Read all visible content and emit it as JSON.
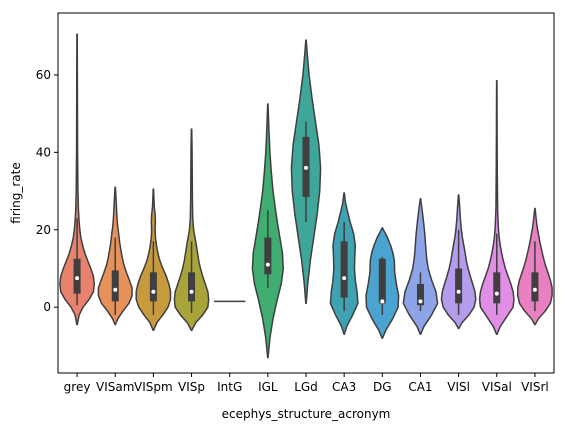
{
  "chart_data": {
    "type": "violin",
    "xlabel": "ecephys_structure_acronym",
    "ylabel": "firing_rate",
    "ylim": [
      -17,
      76
    ],
    "yticks": [
      0,
      20,
      40,
      60
    ],
    "categories": [
      "grey",
      "VISam",
      "VISpm",
      "VISp",
      "IntG",
      "IGL",
      "LGd",
      "CA3",
      "DG",
      "CA1",
      "VISl",
      "VISal",
      "VISrl"
    ],
    "colors": [
      "#e8816e",
      "#e8925b",
      "#c89a3e",
      "#a9a43a",
      "#8aa638",
      "#3fae70",
      "#3ea79a",
      "#3ea2b2",
      "#4ba3cf",
      "#8ea4e8",
      "#b59cec",
      "#e18fe6",
      "#e880c1"
    ],
    "violins": [
      {
        "name": "grey",
        "min": -4.5,
        "max": 70.5,
        "q1": 3.5,
        "median": 7.5,
        "q3": 12.5,
        "whisker_low": 0.5,
        "whisker_high": 23,
        "profile": [
          [
            -4.5,
            0.01
          ],
          [
            -2,
            0.12
          ],
          [
            0,
            0.35
          ],
          [
            2,
            0.7
          ],
          [
            4,
            0.95
          ],
          [
            6,
            1.0
          ],
          [
            8,
            0.95
          ],
          [
            10,
            0.8
          ],
          [
            12,
            0.62
          ],
          [
            14,
            0.45
          ],
          [
            16,
            0.32
          ],
          [
            18,
            0.22
          ],
          [
            20,
            0.16
          ],
          [
            22,
            0.12
          ],
          [
            25,
            0.08
          ],
          [
            30,
            0.05
          ],
          [
            40,
            0.03
          ],
          [
            55,
            0.02
          ],
          [
            70.5,
            0.01
          ]
        ]
      },
      {
        "name": "VISam",
        "min": -4.5,
        "max": 31,
        "q1": 1.5,
        "median": 4.5,
        "q3": 9.5,
        "whisker_low": -2,
        "whisker_high": 18,
        "profile": [
          [
            -4.5,
            0.01
          ],
          [
            -3,
            0.15
          ],
          [
            -1,
            0.45
          ],
          [
            1,
            0.8
          ],
          [
            3,
            0.98
          ],
          [
            5,
            0.98
          ],
          [
            7,
            0.82
          ],
          [
            9,
            0.65
          ],
          [
            11,
            0.5
          ],
          [
            13,
            0.4
          ],
          [
            15,
            0.32
          ],
          [
            17,
            0.25
          ],
          [
            19,
            0.2
          ],
          [
            21,
            0.14
          ],
          [
            24,
            0.09
          ],
          [
            27,
            0.06
          ],
          [
            31,
            0.01
          ]
        ]
      },
      {
        "name": "VISpm",
        "min": -6,
        "max": 30.5,
        "q1": 1.5,
        "median": 4,
        "q3": 9,
        "whisker_low": -2,
        "whisker_high": 17,
        "profile": [
          [
            -6,
            0.01
          ],
          [
            -4,
            0.2
          ],
          [
            -2,
            0.55
          ],
          [
            0,
            0.85
          ],
          [
            2,
            1.0
          ],
          [
            4,
            1.0
          ],
          [
            6,
            0.9
          ],
          [
            8,
            0.75
          ],
          [
            10,
            0.55
          ],
          [
            12,
            0.38
          ],
          [
            14,
            0.26
          ],
          [
            16,
            0.18
          ],
          [
            18,
            0.12
          ],
          [
            20,
            0.1
          ],
          [
            22,
            0.12
          ],
          [
            24,
            0.1
          ],
          [
            26,
            0.05
          ],
          [
            30.5,
            0.01
          ]
        ]
      },
      {
        "name": "VISp",
        "min": -6,
        "max": 46,
        "q1": 1.5,
        "median": 4,
        "q3": 9,
        "whisker_low": -1.5,
        "whisker_high": 17,
        "profile": [
          [
            -6,
            0.01
          ],
          [
            -4,
            0.25
          ],
          [
            -2,
            0.65
          ],
          [
            0,
            0.95
          ],
          [
            2,
            1.0
          ],
          [
            4,
            0.95
          ],
          [
            6,
            0.8
          ],
          [
            8,
            0.65
          ],
          [
            10,
            0.52
          ],
          [
            12,
            0.42
          ],
          [
            14,
            0.35
          ],
          [
            16,
            0.28
          ],
          [
            18,
            0.2
          ],
          [
            20,
            0.12
          ],
          [
            23,
            0.07
          ],
          [
            28,
            0.05
          ],
          [
            35,
            0.04
          ],
          [
            41,
            0.03
          ],
          [
            46,
            0.01
          ]
        ]
      },
      {
        "name": "IntG",
        "flat": true,
        "value": 1.5
      },
      {
        "name": "IGL",
        "min": -13,
        "max": 52.5,
        "q1": 8.5,
        "median": 11,
        "q3": 18,
        "whisker_low": 5,
        "whisker_high": 25,
        "profile": [
          [
            -13,
            0.01
          ],
          [
            -8,
            0.12
          ],
          [
            -3,
            0.3
          ],
          [
            2,
            0.55
          ],
          [
            6,
            0.78
          ],
          [
            10,
            0.9
          ],
          [
            14,
            0.85
          ],
          [
            18,
            0.7
          ],
          [
            22,
            0.55
          ],
          [
            26,
            0.42
          ],
          [
            30,
            0.3
          ],
          [
            35,
            0.2
          ],
          [
            40,
            0.12
          ],
          [
            45,
            0.07
          ],
          [
            52.5,
            0.01
          ]
        ]
      },
      {
        "name": "LGd",
        "min": 1,
        "max": 69,
        "q1": 28.5,
        "median": 36,
        "q3": 44,
        "whisker_low": 22,
        "whisker_high": 48,
        "profile": [
          [
            1,
            0.01
          ],
          [
            6,
            0.1
          ],
          [
            12,
            0.25
          ],
          [
            18,
            0.45
          ],
          [
            24,
            0.65
          ],
          [
            30,
            0.8
          ],
          [
            36,
            0.85
          ],
          [
            42,
            0.75
          ],
          [
            48,
            0.55
          ],
          [
            54,
            0.35
          ],
          [
            60,
            0.18
          ],
          [
            65,
            0.08
          ],
          [
            69,
            0.01
          ]
        ]
      },
      {
        "name": "CA3",
        "min": -7,
        "max": 29.5,
        "q1": 2.5,
        "median": 7.5,
        "q3": 17,
        "whisker_low": -1,
        "whisker_high": 22,
        "profile": [
          [
            -7,
            0.01
          ],
          [
            -5,
            0.15
          ],
          [
            -2,
            0.5
          ],
          [
            1,
            0.8
          ],
          [
            4,
            0.75
          ],
          [
            7,
            0.65
          ],
          [
            10,
            0.6
          ],
          [
            13,
            0.62
          ],
          [
            16,
            0.65
          ],
          [
            19,
            0.55
          ],
          [
            22,
            0.35
          ],
          [
            25,
            0.18
          ],
          [
            27,
            0.08
          ],
          [
            29.5,
            0.01
          ]
        ]
      },
      {
        "name": "DG",
        "min": -8,
        "max": 20.5,
        "q1": 1,
        "median": 1.5,
        "q3": 12.5,
        "whisker_low": -2,
        "whisker_high": 13,
        "profile": [
          [
            -8,
            0.01
          ],
          [
            -6,
            0.2
          ],
          [
            -3,
            0.6
          ],
          [
            0,
            0.92
          ],
          [
            3,
            0.95
          ],
          [
            6,
            0.82
          ],
          [
            9,
            0.72
          ],
          [
            12,
            0.7
          ],
          [
            14,
            0.62
          ],
          [
            16,
            0.48
          ],
          [
            18,
            0.3
          ],
          [
            19.5,
            0.12
          ],
          [
            20.5,
            0.01
          ]
        ]
      },
      {
        "name": "CA1",
        "min": -7,
        "max": 28,
        "q1": 0.5,
        "median": 1.5,
        "q3": 6,
        "whisker_low": -1,
        "whisker_high": 9,
        "profile": [
          [
            -7,
            0.01
          ],
          [
            -5,
            0.2
          ],
          [
            -2,
            0.65
          ],
          [
            1,
            1.0
          ],
          [
            4,
            0.9
          ],
          [
            7,
            0.65
          ],
          [
            10,
            0.45
          ],
          [
            13,
            0.35
          ],
          [
            16,
            0.3
          ],
          [
            19,
            0.25
          ],
          [
            22,
            0.18
          ],
          [
            25,
            0.1
          ],
          [
            28,
            0.01
          ]
        ]
      },
      {
        "name": "VISl",
        "min": -5.5,
        "max": 29,
        "q1": 1,
        "median": 4,
        "q3": 10,
        "whisker_low": -2,
        "whisker_high": 20,
        "profile": [
          [
            -5.5,
            0.01
          ],
          [
            -4,
            0.2
          ],
          [
            -2,
            0.6
          ],
          [
            0,
            0.9
          ],
          [
            2,
            1.0
          ],
          [
            4,
            0.95
          ],
          [
            6,
            0.82
          ],
          [
            8,
            0.68
          ],
          [
            10,
            0.55
          ],
          [
            12,
            0.45
          ],
          [
            14,
            0.38
          ],
          [
            16,
            0.3
          ],
          [
            18,
            0.22
          ],
          [
            20,
            0.16
          ],
          [
            23,
            0.1
          ],
          [
            26,
            0.06
          ],
          [
            29,
            0.01
          ]
        ]
      },
      {
        "name": "VISal",
        "min": -7,
        "max": 58.5,
        "q1": 1,
        "median": 3.5,
        "q3": 9,
        "whisker_low": -2,
        "whisker_high": 19,
        "profile": [
          [
            -7,
            0.01
          ],
          [
            -5,
            0.2
          ],
          [
            -2,
            0.65
          ],
          [
            0,
            0.95
          ],
          [
            2,
            1.0
          ],
          [
            4,
            0.95
          ],
          [
            6,
            0.82
          ],
          [
            8,
            0.66
          ],
          [
            10,
            0.5
          ],
          [
            12,
            0.38
          ],
          [
            14,
            0.28
          ],
          [
            16,
            0.2
          ],
          [
            18,
            0.14
          ],
          [
            20,
            0.1
          ],
          [
            25,
            0.05
          ],
          [
            35,
            0.03
          ],
          [
            45,
            0.02
          ],
          [
            58.5,
            0.01
          ]
        ]
      },
      {
        "name": "VISrl",
        "min": -4.5,
        "max": 25.5,
        "q1": 1.5,
        "median": 4.5,
        "q3": 9,
        "whisker_low": -1,
        "whisker_high": 17,
        "profile": [
          [
            -4.5,
            0.01
          ],
          [
            -3,
            0.2
          ],
          [
            -1,
            0.6
          ],
          [
            1,
            0.9
          ],
          [
            3,
            1.0
          ],
          [
            5,
            1.0
          ],
          [
            7,
            0.9
          ],
          [
            9,
            0.75
          ],
          [
            11,
            0.6
          ],
          [
            13,
            0.48
          ],
          [
            15,
            0.38
          ],
          [
            17,
            0.28
          ],
          [
            19,
            0.2
          ],
          [
            21,
            0.12
          ],
          [
            23,
            0.07
          ],
          [
            25.5,
            0.01
          ]
        ]
      }
    ]
  }
}
